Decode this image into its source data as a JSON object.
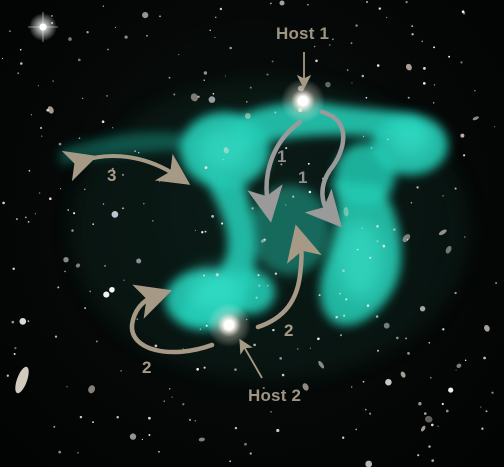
{
  "labels": {
    "host1": "Host 1",
    "host2": "Host 2",
    "stream_1a": "1",
    "stream_1b": "1",
    "stream_2a": "2",
    "stream_2b": "2",
    "stream_3": "3"
  },
  "colors": {
    "emission": "#26d3bd",
    "arrow_grey": "#9a9a9a",
    "arrow_tan": "#a69a86",
    "label_tan": "#9e9484",
    "background": "#050807"
  }
}
